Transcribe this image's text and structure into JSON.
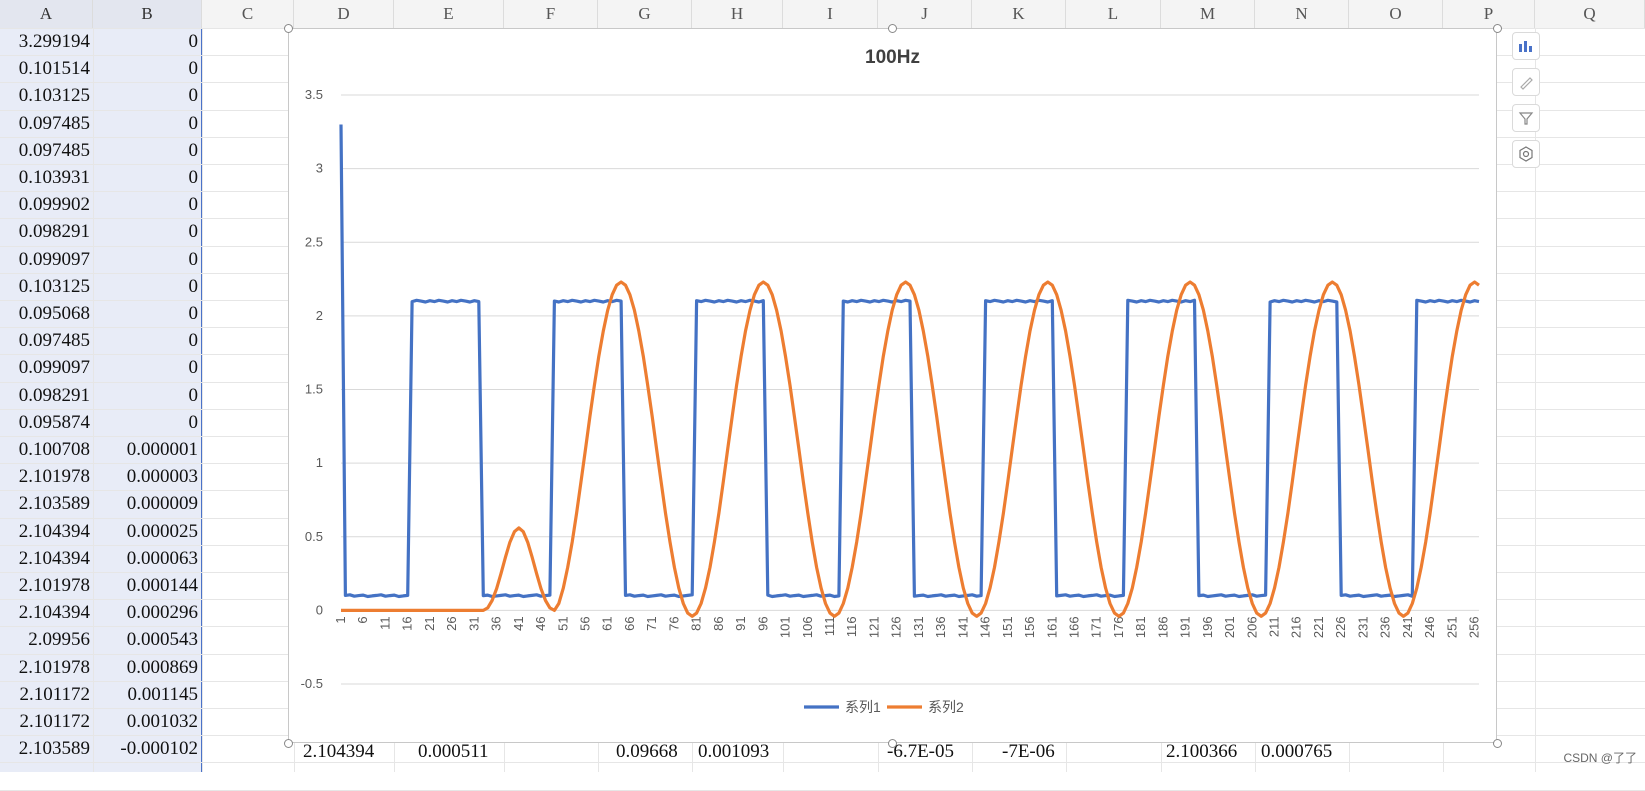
{
  "columns": [
    "A",
    "B",
    "C",
    "D",
    "E",
    "F",
    "G",
    "H",
    "I",
    "J",
    "K",
    "L",
    "M",
    "N",
    "O",
    "P",
    "Q"
  ],
  "col_a": [
    "3.299194",
    "0.101514",
    "0.103125",
    "0.097485",
    "0.097485",
    "0.103931",
    "0.099902",
    "0.098291",
    "0.099097",
    "0.103125",
    "0.095068",
    "0.097485",
    "0.099097",
    "0.098291",
    "0.095874",
    "0.100708",
    "2.101978",
    "2.103589",
    "2.104394",
    "2.104394",
    "2.101978",
    "2.104394",
    "2.09956",
    "2.101978",
    "2.101172",
    "2.101172",
    "2.103589"
  ],
  "col_b": [
    "0",
    "0",
    "0",
    "0",
    "0",
    "0",
    "0",
    "0",
    "0",
    "0",
    "0",
    "0",
    "0",
    "0",
    "0",
    "0.000001",
    "0.000003",
    "0.000009",
    "0.000025",
    "0.000063",
    "0.000144",
    "0.000296",
    "0.000543",
    "0.000869",
    "0.001145",
    "0.001032",
    "-0.000102"
  ],
  "bottom_row": {
    "d": "2.104394",
    "e": "0.000511",
    "g": "0.09668",
    "h": "0.001093",
    "j": "-6.7E-05",
    "k": "-7E-06",
    "m": "2.100366",
    "n": "0.000765"
  },
  "chart_data": {
    "type": "line",
    "title": "100Hz",
    "xlabel": "",
    "ylabel": "",
    "ylim": [
      -0.5,
      3.5
    ],
    "yticks": [
      "3.5",
      "3",
      "2.5",
      "2",
      "1.5",
      "1",
      "0.5",
      "0",
      "-0.5"
    ],
    "x_tick_labels": [
      "1",
      "6",
      "11",
      "16",
      "21",
      "26",
      "31",
      "36",
      "41",
      "46",
      "51",
      "56",
      "61",
      "66",
      "71",
      "76",
      "81",
      "86",
      "91",
      "96",
      "101",
      "106",
      "111",
      "116",
      "121",
      "126",
      "131",
      "136",
      "141",
      "146",
      "151",
      "156",
      "161",
      "166",
      "171",
      "176",
      "181",
      "186",
      "191",
      "196",
      "201",
      "206",
      "211",
      "216",
      "221",
      "226",
      "231",
      "236",
      "241",
      "246",
      "251",
      "256"
    ],
    "x_count": 257,
    "series": [
      {
        "name": "系列1",
        "color": "#4472c4",
        "description_points": "square wave: first point 3.3, low ~0.1, high ~2.1",
        "high": 2.1,
        "low": 0.1,
        "first": 3.3,
        "high_intervals": [
          [
            17,
            32
          ],
          [
            49,
            64
          ],
          [
            81,
            96
          ],
          [
            114,
            129
          ],
          [
            146,
            161
          ],
          [
            178,
            193
          ],
          [
            210,
            225
          ],
          [
            243,
            257
          ]
        ]
      },
      {
        "name": "系列2",
        "color": "#ed7d31",
        "peak": 2.23,
        "trough": -0.04,
        "bump_peak": 0.56,
        "bump_center": 42,
        "peaks": [
          64,
          96,
          128,
          160,
          192,
          224,
          257
        ],
        "troughs": [
          33,
          49,
          80,
          112,
          144,
          176,
          208,
          240
        ]
      }
    ],
    "legend": "bottom"
  },
  "watermark": "CSDN @了了"
}
